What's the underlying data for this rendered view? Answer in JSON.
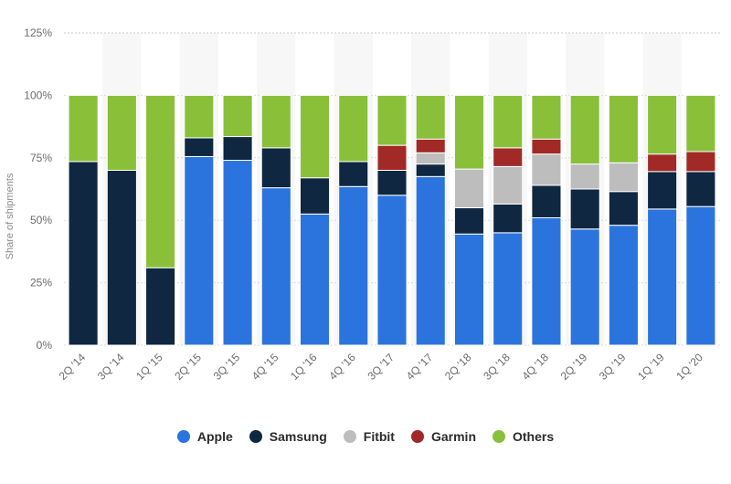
{
  "chart_data": {
    "type": "bar",
    "stacked": true,
    "ylabel": "Share of shipments",
    "ylim": [
      0,
      125
    ],
    "yticks": [
      "0%",
      "25%",
      "50%",
      "75%",
      "100%",
      "125%"
    ],
    "grid": true,
    "legend_position": "bottom",
    "categories": [
      "2Q '14",
      "3Q '14",
      "1Q '15",
      "2Q '15",
      "3Q '15",
      "4Q '15",
      "1Q '16",
      "4Q '16",
      "3Q '17",
      "4Q '17",
      "2Q '18",
      "3Q '18",
      "4Q '18",
      "2Q '19",
      "3Q '19",
      "1Q '19",
      "1Q '20"
    ],
    "series": [
      {
        "name": "Apple",
        "color": "#2b74de",
        "values": [
          0,
          0,
          0,
          75.5,
          74,
          63,
          52.5,
          63.5,
          60,
          67.5,
          44.5,
          45,
          51,
          46.5,
          48,
          54.5,
          55.5
        ]
      },
      {
        "name": "Samsung",
        "color": "#0f2740",
        "values": [
          73.5,
          70,
          31,
          7.5,
          9.5,
          16,
          14.5,
          10,
          10,
          5,
          10.5,
          11.5,
          13,
          16,
          13.5,
          15,
          14
        ]
      },
      {
        "name": "Fitbit",
        "color": "#bdbdbd",
        "values": [
          0,
          0,
          0,
          0,
          0,
          0,
          0,
          0,
          0,
          4.5,
          15.5,
          15,
          12.5,
          10,
          11.5,
          0,
          0
        ]
      },
      {
        "name": "Garmin",
        "color": "#a12a26",
        "values": [
          0,
          0,
          0,
          0,
          0,
          0,
          0,
          0,
          10,
          5.5,
          0,
          7.5,
          6,
          0,
          0,
          7,
          8
        ]
      },
      {
        "name": "Others",
        "color": "#8abf3a",
        "values": [
          26.5,
          30,
          69,
          17,
          16.5,
          21,
          33,
          26.5,
          20,
          17.5,
          29.5,
          21,
          17.5,
          27.5,
          27,
          23.5,
          22.5
        ]
      }
    ]
  }
}
